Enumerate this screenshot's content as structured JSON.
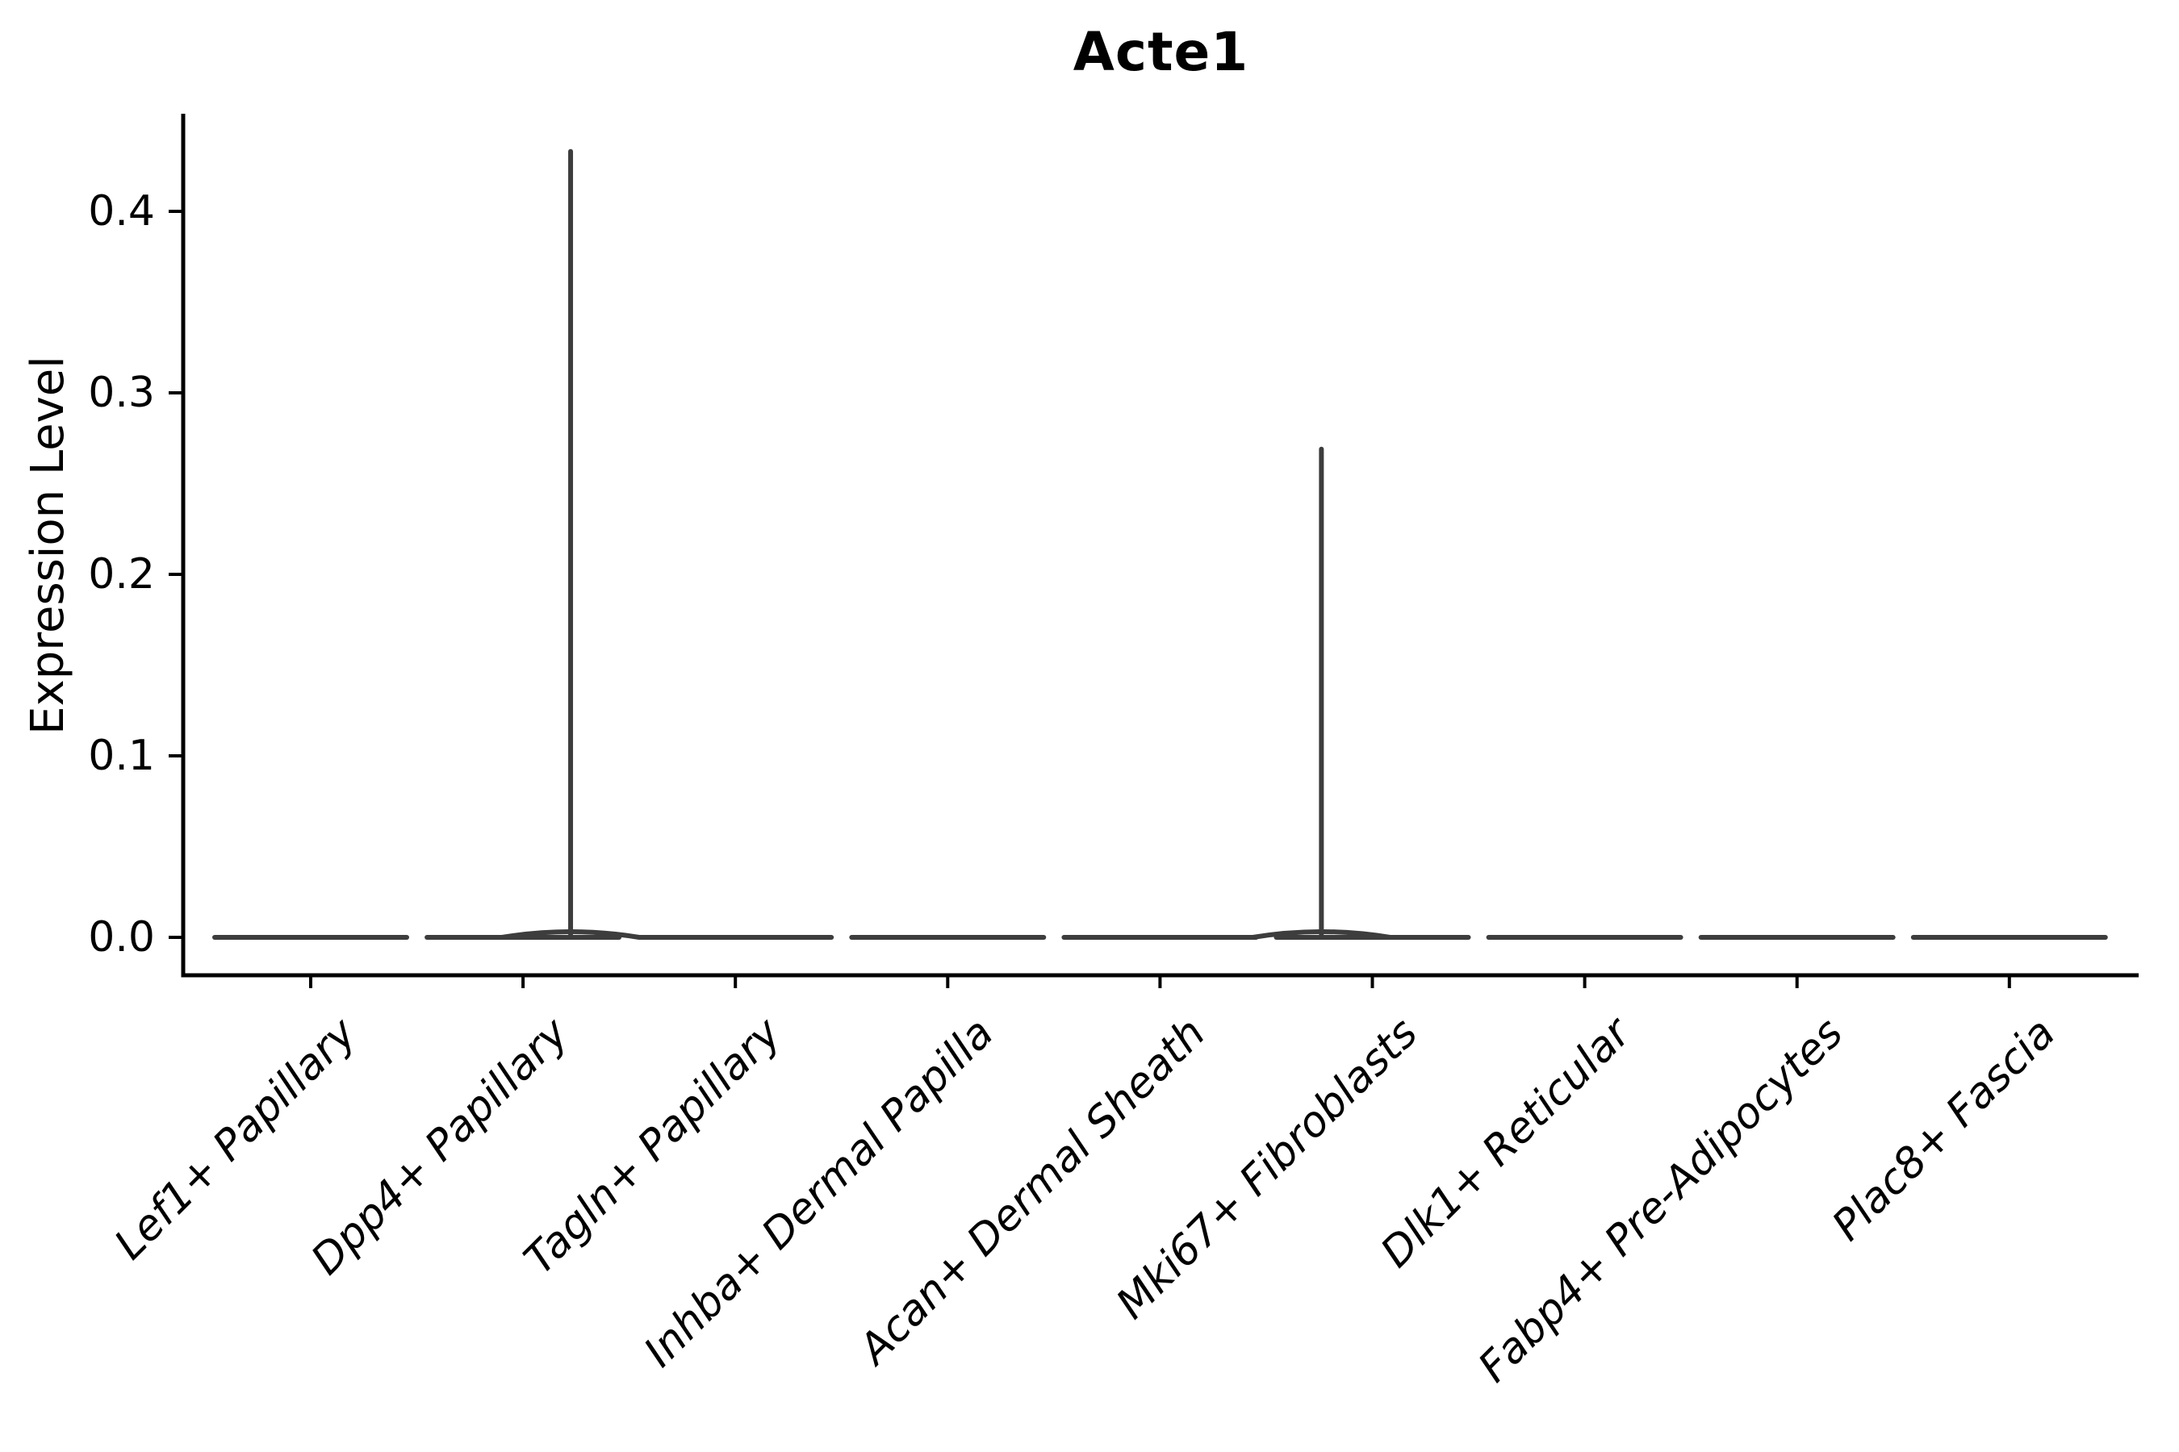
{
  "figure": {
    "title": "Acte1"
  },
  "chart_data": {
    "type": "violin",
    "title": "Acte1",
    "xlabel": "",
    "ylabel": "Expression Level",
    "categories": [
      "Lef1+ Papillary",
      "Dpp4+ Papillary",
      "Tagln+ Papillary",
      "Inhba+ Dermal Papilla",
      "Acan+ Dermal Sheath",
      "Mki67+ Fibroblasts",
      "Dlk1+ Reticular",
      "Fabp4+ Pre-Adipocytes",
      "Plac8+ Fascia"
    ],
    "yticks": [
      0.0,
      0.1,
      0.2,
      0.3,
      0.4
    ],
    "ylim": [
      -0.021,
      0.454
    ],
    "grid": false,
    "legend": null,
    "series": [
      {
        "name": "Expression Level",
        "violins": [
          {
            "category": "Lef1+ Papillary",
            "baseline": 0.0,
            "max": 0.0,
            "spike": null
          },
          {
            "category": "Dpp4+ Papillary",
            "baseline": 0.0,
            "max": 0.433,
            "spike": {
              "value": 0.433,
              "offset_frac": 0.224
            }
          },
          {
            "category": "Tagln+ Papillary",
            "baseline": 0.0,
            "max": 0.0,
            "spike": null
          },
          {
            "category": "Inhba+ Dermal Papilla",
            "baseline": 0.0,
            "max": 0.0,
            "spike": null
          },
          {
            "category": "Acan+ Dermal Sheath",
            "baseline": 0.0,
            "max": 0.0,
            "spike": null
          },
          {
            "category": "Mki67+ Fibroblasts",
            "baseline": 0.0,
            "max": 0.269,
            "spike": {
              "value": 0.269,
              "offset_frac": -0.24
            }
          },
          {
            "category": "Dlk1+ Reticular",
            "baseline": 0.0,
            "max": 0.0,
            "spike": null
          },
          {
            "category": "Fabp4+ Pre-Adipocytes",
            "baseline": 0.0,
            "max": 0.0,
            "spike": null
          },
          {
            "category": "Plac8+ Fascia",
            "baseline": 0.0,
            "max": 0.0,
            "spike": null
          }
        ]
      }
    ],
    "colors": {
      "violin_stroke": "#3d3d3d",
      "axis": "#000000",
      "text": "#000000",
      "background": "#ffffff"
    }
  }
}
